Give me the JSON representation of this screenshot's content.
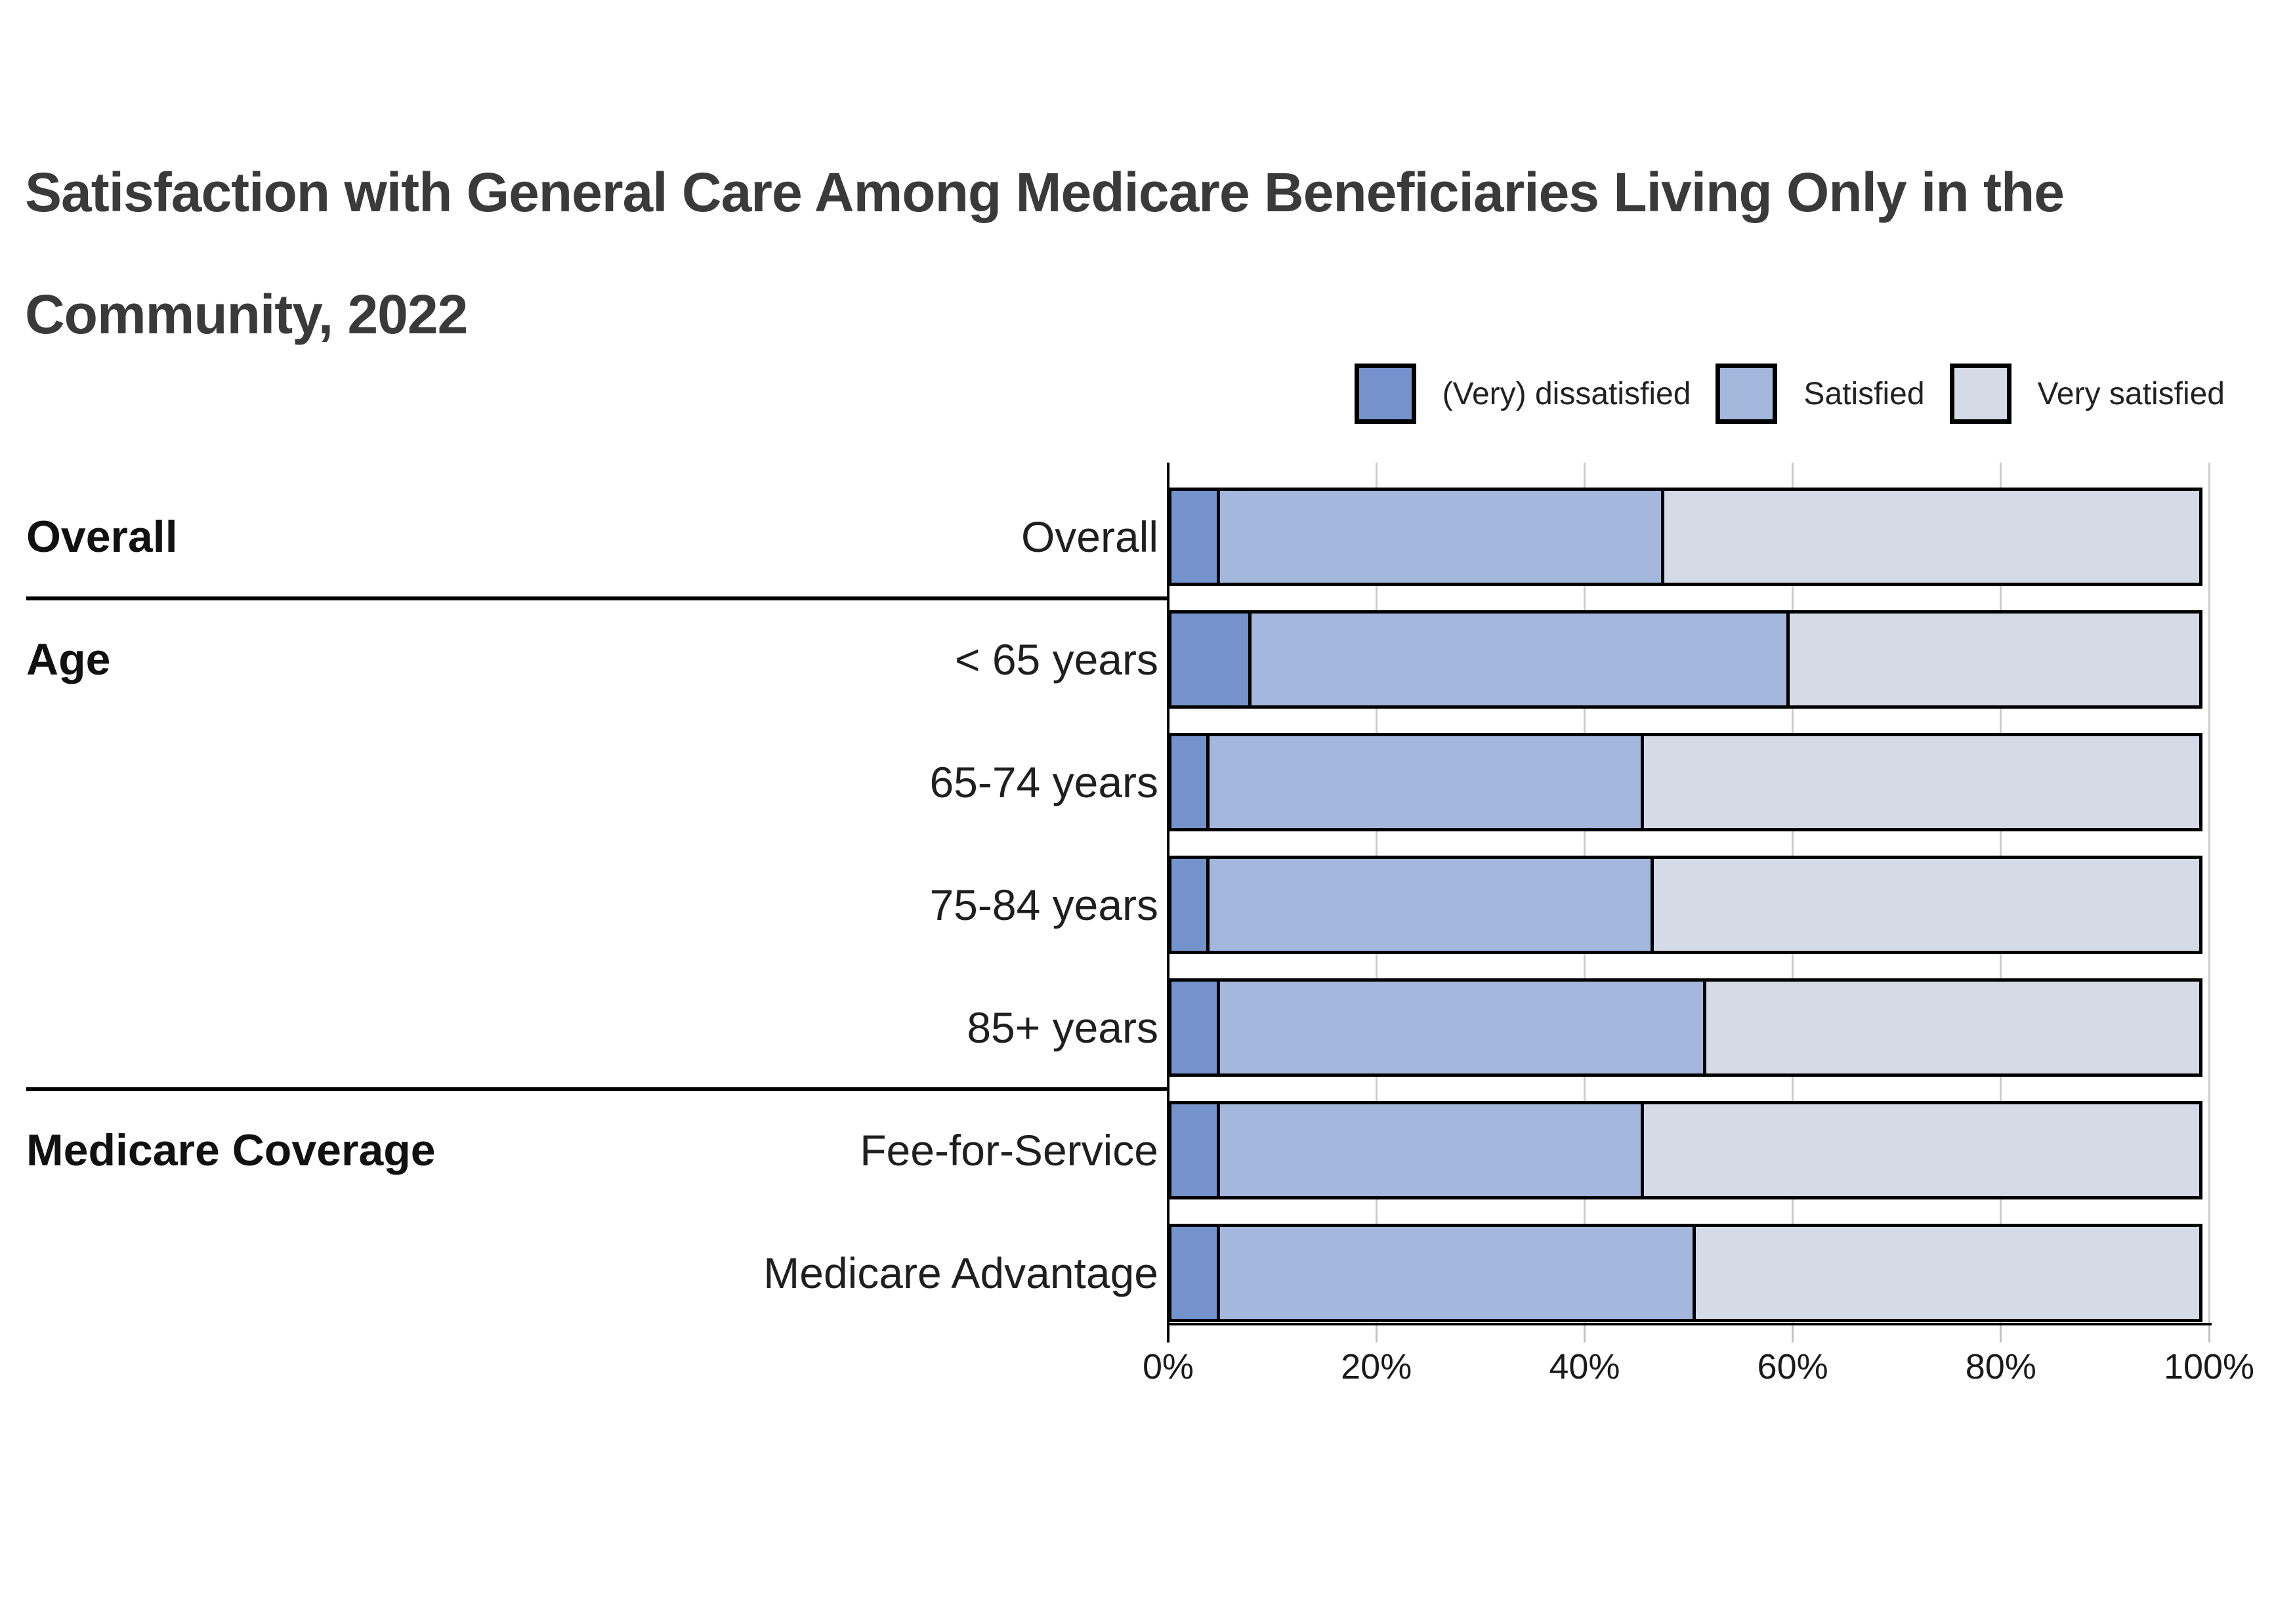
{
  "title": "Satisfaction with General Care Among Medicare Beneficiaries Living Only in the Community, 2022",
  "legend": [
    {
      "label": "(Very) dissatisfied",
      "color": "#7493CC"
    },
    {
      "label": "Satisfied",
      "color": "#A4B7DC"
    },
    {
      "label": "Very satisfied",
      "color": "#D4DBE6"
    }
  ],
  "chart_data": {
    "type": "bar",
    "orientation": "horizontal-stacked",
    "unit": "percent",
    "title": "Satisfaction with General Care Among Medicare Beneficiaries Living Only in the Community, 2022",
    "series_names": [
      "(Very) dissatisfied",
      "Satisfied",
      "Very satisfied"
    ],
    "groups": [
      {
        "label": "Overall",
        "rows": [
          {
            "label": "Overall",
            "values": [
              5,
              43,
              52
            ]
          }
        ]
      },
      {
        "label": "Age",
        "rows": [
          {
            "label": "< 65 years",
            "values": [
              8,
              52,
              40
            ]
          },
          {
            "label": "65-74 years",
            "values": [
              4,
              42,
              54
            ]
          },
          {
            "label": "75-84 years",
            "values": [
              4,
              43,
              53
            ]
          },
          {
            "label": "85+ years",
            "values": [
              5,
              47,
              48
            ]
          }
        ]
      },
      {
        "label": "Medicare Coverage",
        "rows": [
          {
            "label": "Fee-for-Service",
            "values": [
              5,
              41,
              54
            ]
          },
          {
            "label": "Medicare Advantage",
            "values": [
              5,
              46,
              49
            ]
          }
        ]
      }
    ],
    "x_axis": {
      "min": 0,
      "max": 100,
      "tick_values": [
        0,
        20,
        40,
        60,
        80,
        100
      ],
      "tick_labels": [
        "0%",
        "20%",
        "40%",
        "60%",
        "80%",
        "100%"
      ],
      "grid": true
    },
    "legend_position": "top-right"
  }
}
